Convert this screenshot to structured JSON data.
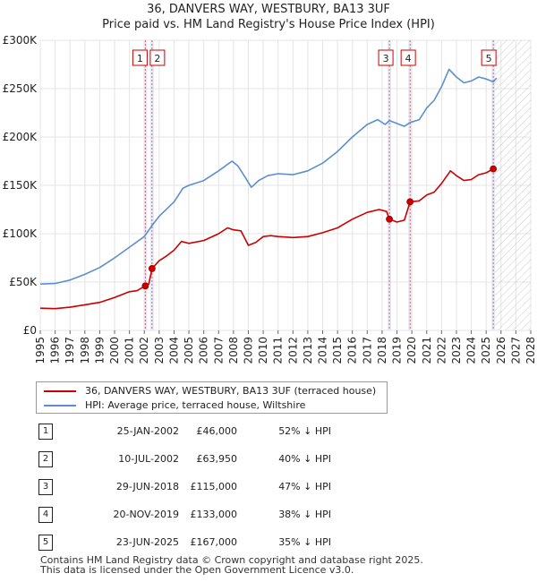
{
  "chart_data": {
    "type": "line",
    "title": "36, DANVERS WAY, WESTBURY, BA13 3UF",
    "subtitle": "Price paid vs. HM Land Registry's House Price Index (HPI)",
    "xlim": [
      1995,
      2028
    ],
    "ylim": [
      0,
      300000
    ],
    "x_ticks": [
      1995,
      1996,
      1997,
      1998,
      1999,
      2000,
      2001,
      2002,
      2003,
      2004,
      2005,
      2006,
      2007,
      2008,
      2009,
      2010,
      2011,
      2012,
      2013,
      2014,
      2015,
      2016,
      2017,
      2018,
      2019,
      2020,
      2021,
      2022,
      2023,
      2024,
      2025,
      2026,
      2027,
      2028
    ],
    "y_ticks": [
      0,
      50000,
      100000,
      150000,
      200000,
      250000,
      300000
    ],
    "y_tick_labels": [
      "£0",
      "£50K",
      "£100K",
      "£150K",
      "£200K",
      "£250K",
      "£300K"
    ],
    "forecast_from": 2025.5,
    "series": [
      {
        "name": "36, DANVERS WAY, WESTBURY, BA13 3UF (terraced house)",
        "color": "#cc0000",
        "points": [
          [
            1995.0,
            23000
          ],
          [
            1996.0,
            22500
          ],
          [
            1997.0,
            24000
          ],
          [
            1998.0,
            26500
          ],
          [
            1999.0,
            29000
          ],
          [
            2000.0,
            34000
          ],
          [
            2001.0,
            40000
          ],
          [
            2001.5,
            41000
          ],
          [
            2002.07,
            46000
          ],
          [
            2002.3,
            48000
          ],
          [
            2002.52,
            63950
          ],
          [
            2003.0,
            72000
          ],
          [
            2003.5,
            77000
          ],
          [
            2004.0,
            83000
          ],
          [
            2004.5,
            92000
          ],
          [
            2005.0,
            90000
          ],
          [
            2006.0,
            93000
          ],
          [
            2007.0,
            100000
          ],
          [
            2007.6,
            106000
          ],
          [
            2008.0,
            104000
          ],
          [
            2008.5,
            103000
          ],
          [
            2009.0,
            88000
          ],
          [
            2009.5,
            91000
          ],
          [
            2010.0,
            97000
          ],
          [
            2010.5,
            98000
          ],
          [
            2011.0,
            97000
          ],
          [
            2012.0,
            96000
          ],
          [
            2013.0,
            97000
          ],
          [
            2014.0,
            101000
          ],
          [
            2015.0,
            106000
          ],
          [
            2016.0,
            115000
          ],
          [
            2017.0,
            122000
          ],
          [
            2017.8,
            125000
          ],
          [
            2018.3,
            123000
          ],
          [
            2018.49,
            115000
          ],
          [
            2019.0,
            112000
          ],
          [
            2019.5,
            114000
          ],
          [
            2019.88,
            133000
          ],
          [
            2020.5,
            134000
          ],
          [
            2021.0,
            140000
          ],
          [
            2021.5,
            143000
          ],
          [
            2022.0,
            152000
          ],
          [
            2022.6,
            165000
          ],
          [
            2023.0,
            160000
          ],
          [
            2023.5,
            155000
          ],
          [
            2024.0,
            156000
          ],
          [
            2024.5,
            161000
          ],
          [
            2025.0,
            163000
          ],
          [
            2025.48,
            167000
          ]
        ]
      },
      {
        "name": "HPI: Average price, terraced house, Wiltshire",
        "color": "#5b8fd0",
        "points": [
          [
            1995.0,
            48000
          ],
          [
            1996.0,
            48500
          ],
          [
            1997.0,
            52000
          ],
          [
            1998.0,
            58000
          ],
          [
            1999.0,
            65000
          ],
          [
            2000.0,
            75000
          ],
          [
            2001.0,
            86000
          ],
          [
            2002.0,
            97000
          ],
          [
            2002.5,
            108000
          ],
          [
            2003.0,
            118000
          ],
          [
            2004.0,
            133000
          ],
          [
            2004.6,
            147000
          ],
          [
            2005.0,
            150000
          ],
          [
            2006.0,
            155000
          ],
          [
            2007.0,
            165000
          ],
          [
            2007.9,
            175000
          ],
          [
            2008.3,
            170000
          ],
          [
            2008.8,
            158000
          ],
          [
            2009.2,
            148000
          ],
          [
            2009.7,
            155000
          ],
          [
            2010.3,
            160000
          ],
          [
            2011.0,
            162000
          ],
          [
            2012.0,
            161000
          ],
          [
            2013.0,
            165000
          ],
          [
            2014.0,
            173000
          ],
          [
            2015.0,
            185000
          ],
          [
            2016.0,
            200000
          ],
          [
            2017.0,
            213000
          ],
          [
            2017.7,
            218000
          ],
          [
            2018.2,
            213000
          ],
          [
            2018.49,
            217000
          ],
          [
            2019.0,
            214000
          ],
          [
            2019.5,
            211000
          ],
          [
            2019.88,
            215000
          ],
          [
            2020.5,
            218000
          ],
          [
            2021.0,
            230000
          ],
          [
            2021.5,
            238000
          ],
          [
            2022.0,
            252000
          ],
          [
            2022.5,
            270000
          ],
          [
            2023.0,
            262000
          ],
          [
            2023.5,
            256000
          ],
          [
            2024.0,
            258000
          ],
          [
            2024.5,
            262000
          ],
          [
            2025.0,
            260000
          ],
          [
            2025.48,
            257000
          ],
          [
            2025.7,
            261000
          ]
        ]
      }
    ],
    "sales": [
      {
        "num": "1",
        "x": 2002.07,
        "price": 46000
      },
      {
        "num": "2",
        "x": 2002.52,
        "price": 63950
      },
      {
        "num": "3",
        "x": 2018.49,
        "price": 115000
      },
      {
        "num": "4",
        "x": 2019.88,
        "price": 133000
      },
      {
        "num": "5",
        "x": 2025.48,
        "price": 167000
      }
    ]
  },
  "legend": {
    "property_label": "36, DANVERS WAY, WESTBURY, BA13 3UF (terraced house)",
    "hpi_label": "HPI: Average price, terraced house, Wiltshire"
  },
  "sales_table": [
    {
      "num": "1",
      "date": "25-JAN-2002",
      "price": "£46,000",
      "hpi": "52% ↓ HPI"
    },
    {
      "num": "2",
      "date": "10-JUL-2002",
      "price": "£63,950",
      "hpi": "40% ↓ HPI"
    },
    {
      "num": "3",
      "date": "29-JUN-2018",
      "price": "£115,000",
      "hpi": "47% ↓ HPI"
    },
    {
      "num": "4",
      "date": "20-NOV-2019",
      "price": "£133,000",
      "hpi": "38% ↓ HPI"
    },
    {
      "num": "5",
      "date": "23-JUN-2025",
      "price": "£167,000",
      "hpi": "35% ↓ HPI"
    }
  ],
  "footer": {
    "line1": "Contains HM Land Registry data © Crown copyright and database right 2025.",
    "line2": "This data is licensed under the Open Government Licence v3.0."
  }
}
